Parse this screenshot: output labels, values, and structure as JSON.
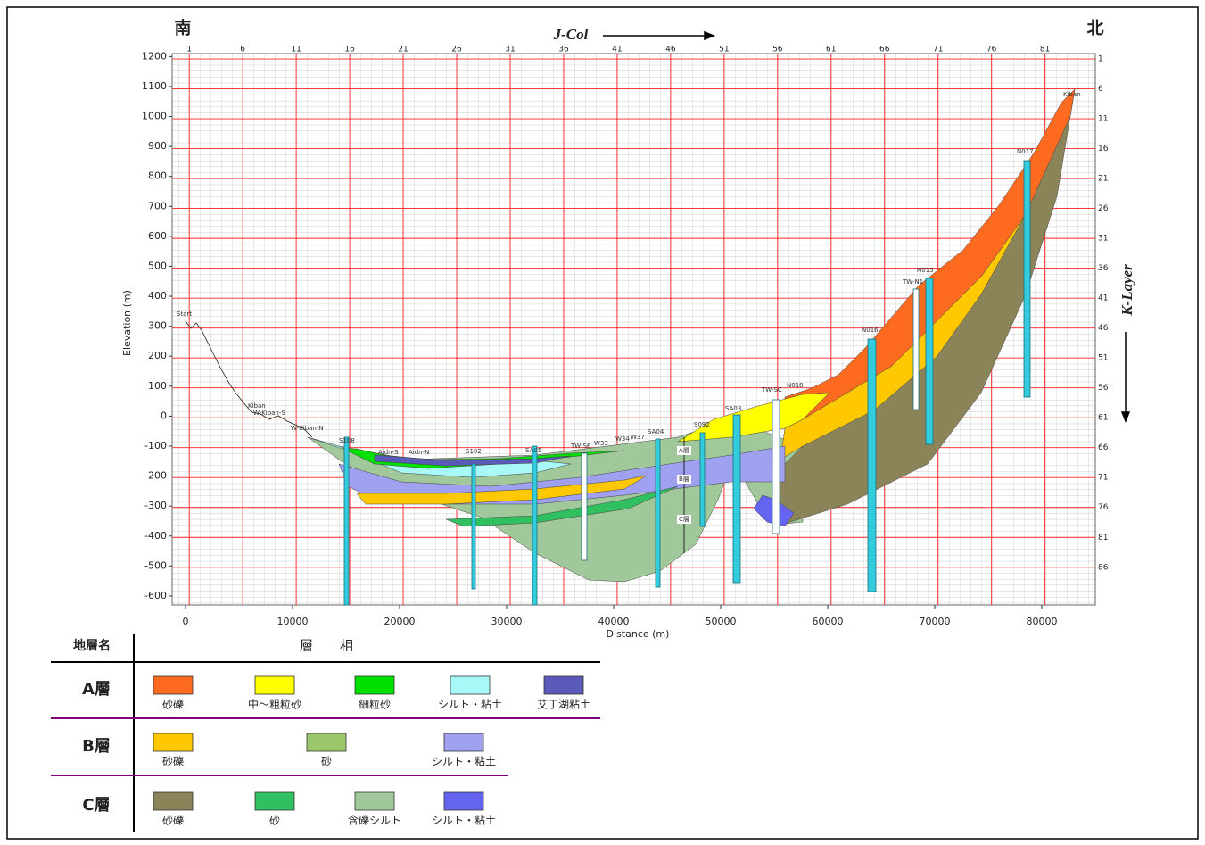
{
  "chart_data": {
    "type": "cross-section",
    "south_label": "南",
    "north_label": "北",
    "x2_label": "J-Col",
    "y2_label": "K-Layer",
    "xlabel": "Distance (m)",
    "ylabel": "Elevation (m)",
    "xlim": [
      -1250,
      85000
    ],
    "xticks": [
      0,
      10000,
      20000,
      30000,
      40000,
      50000,
      60000,
      70000,
      80000
    ],
    "ylim": [
      -630,
      1210
    ],
    "yticks": [
      -600,
      -500,
      -400,
      -300,
      -200,
      -100,
      0,
      100,
      200,
      300,
      400,
      500,
      600,
      700,
      800,
      900,
      1000,
      1100,
      1200
    ],
    "x2lim": [
      -0.6,
      85.7
    ],
    "x2ticks": [
      1,
      6,
      11,
      16,
      21,
      26,
      31,
      36,
      41,
      46,
      51,
      56,
      61,
      66,
      71,
      76,
      81
    ],
    "y2lim": [
      92.3,
      0.1
    ],
    "y2ticks": [
      1,
      6,
      11,
      16,
      21,
      26,
      31,
      36,
      41,
      46,
      51,
      56,
      61,
      66,
      71,
      76,
      81,
      86
    ],
    "grid": true,
    "boreholes": [
      "Start",
      "Kiban",
      "W-Kiban-S",
      "W-Kiban-N",
      "S108",
      "Aidn-S",
      "Aidn-N",
      "S102",
      "SA05",
      "TW-S6",
      "W33",
      "W34",
      "W37",
      "SA04",
      "S092",
      "SA03",
      "TW-SC",
      "N018",
      "N016",
      "TW-N1",
      "N015",
      "N017",
      "Kiban"
    ],
    "zone_labels": [
      "A層",
      "B層",
      "C層"
    ]
  },
  "legend": {
    "header": [
      "地層名",
      "層　　相"
    ],
    "rows": [
      {
        "layer": "A層",
        "items": [
          {
            "name": "砂礫",
            "color": "#ff6a21"
          },
          {
            "name": "中～粗粒砂",
            "color": "#ffff00"
          },
          {
            "name": "細粒砂",
            "color": "#00e000"
          },
          {
            "name": "シルト・粘土",
            "color": "#a8f8f8"
          },
          {
            "name": "艾丁湖粘土",
            "color": "#5a5ab8"
          }
        ]
      },
      {
        "layer": "B層",
        "items": [
          {
            "name": "砂礫",
            "color": "#ffc800"
          },
          {
            "name": "砂",
            "color": "#9bc86a"
          },
          {
            "name": "シルト・粘土",
            "color": "#a0a0f0"
          }
        ]
      },
      {
        "layer": "C層",
        "items": [
          {
            "name": "砂礫",
            "color": "#8a8458"
          },
          {
            "name": "砂",
            "color": "#30c060"
          },
          {
            "name": "含礫シルト",
            "color": "#a0c89a"
          },
          {
            "name": "シルト・粘土",
            "color": "#6464f0"
          }
        ]
      }
    ]
  }
}
